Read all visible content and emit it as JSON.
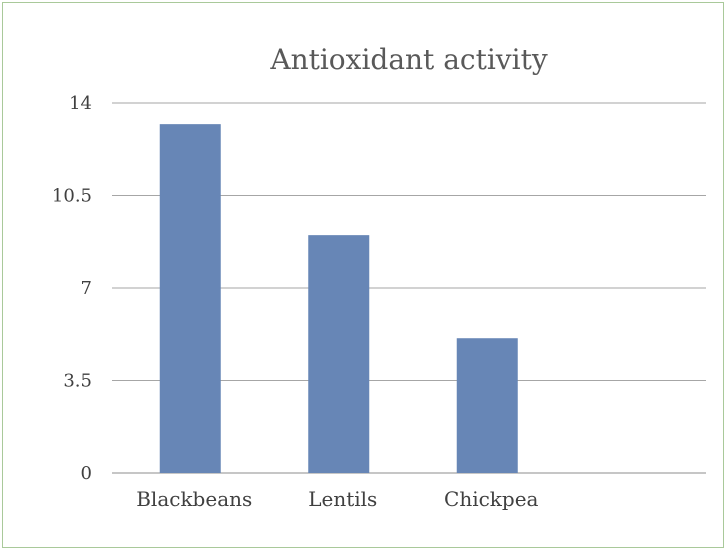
{
  "chart_data": {
    "type": "bar",
    "title": "Antioxidant activity",
    "categories": [
      "Blackbeans",
      "Lentils",
      "Chickpea",
      ""
    ],
    "values": [
      13.2,
      9.0,
      5.1,
      null
    ],
    "ylim": [
      0,
      14
    ],
    "yticks": [
      "0",
      "3.5",
      "7",
      "10.5",
      "14"
    ],
    "grid": true,
    "legend": "none",
    "bar_color": "#6786b6"
  }
}
